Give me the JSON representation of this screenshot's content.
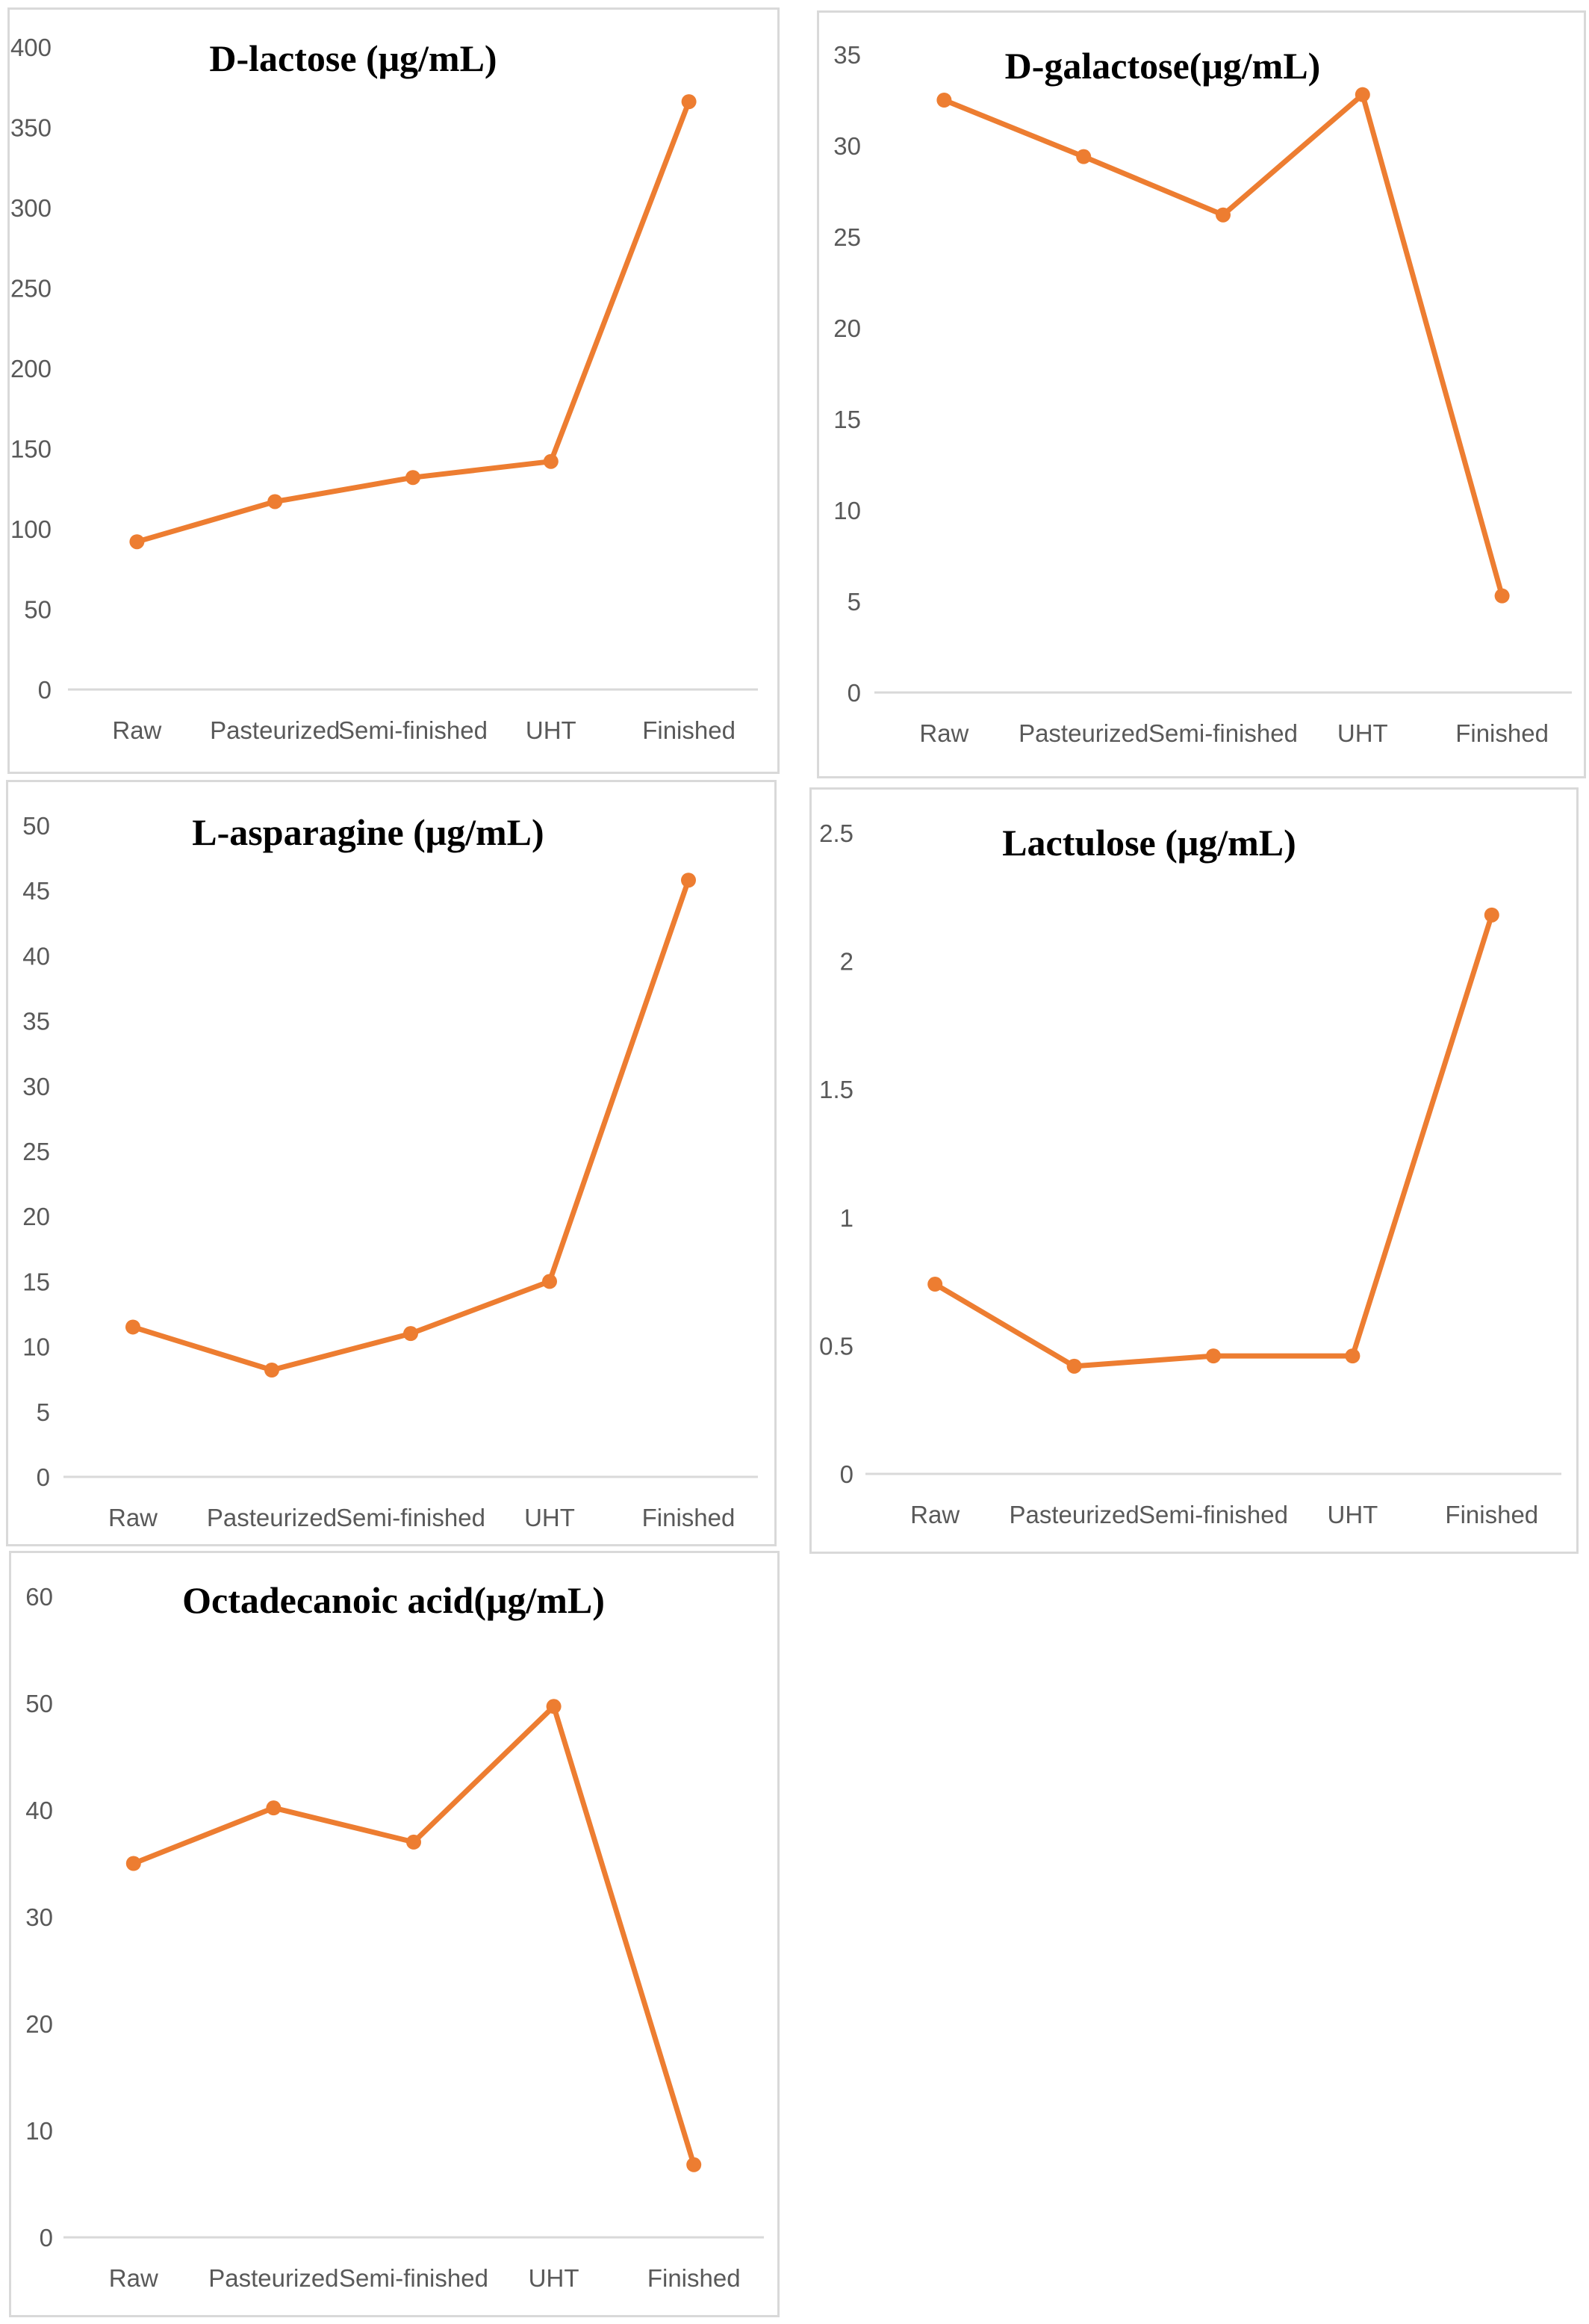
{
  "colors": {
    "series": "#ED7D31",
    "axis": "#D9D9D9",
    "tick_text": "#595959"
  },
  "chart_data": [
    {
      "type": "line",
      "title": "D-lactose (μg/mL)",
      "categories": [
        "Raw",
        "Pasteurized",
        "Semi-finished",
        "UHT",
        "Finished"
      ],
      "values": [
        92,
        117,
        132,
        142,
        366
      ],
      "yticks": [
        "0",
        "50",
        "100",
        "150",
        "200",
        "250",
        "300",
        "350",
        "400"
      ],
      "ylim": [
        0,
        400
      ],
      "grid": false,
      "legend": "none"
    },
    {
      "type": "line",
      "title": "D-galactose(μg/mL)",
      "categories": [
        "Raw",
        "Pasteurized",
        "Semi-finished",
        "UHT",
        "Finished"
      ],
      "values": [
        32.5,
        29.4,
        26.2,
        32.8,
        5.3
      ],
      "yticks": [
        "0",
        "5",
        "10",
        "15",
        "20",
        "25",
        "30",
        "35"
      ],
      "ylim": [
        0,
        35
      ],
      "grid": false,
      "legend": "none"
    },
    {
      "type": "line",
      "title": "L-asparagine (μg/mL)",
      "categories": [
        "Raw",
        "Pasteurized",
        "Semi-finished",
        "UHT",
        "Finished"
      ],
      "values": [
        11.5,
        8.2,
        11.0,
        15.0,
        45.8
      ],
      "yticks": [
        "0",
        "5",
        "10",
        "15",
        "20",
        "25",
        "30",
        "35",
        "40",
        "45",
        "50"
      ],
      "ylim": [
        0,
        50
      ],
      "grid": false,
      "legend": "none"
    },
    {
      "type": "line",
      "title": "Lactulose (μg/mL)",
      "categories": [
        "Raw",
        "Pasteurized",
        "Semi-finished",
        "UHT",
        "Finished"
      ],
      "values": [
        0.74,
        0.42,
        0.46,
        0.46,
        2.18
      ],
      "yticks": [
        "0",
        "0.5",
        "1",
        "1.5",
        "2",
        "2.5"
      ],
      "ylim": [
        0,
        2.5
      ],
      "grid": false,
      "legend": "none"
    },
    {
      "type": "line",
      "title": "Octadecanoic acid(μg/mL)",
      "categories": [
        "Raw",
        "Pasteurized",
        "Semi-finished",
        "UHT",
        "Finished"
      ],
      "values": [
        35.0,
        40.2,
        37.0,
        49.7,
        6.8
      ],
      "yticks": [
        "0",
        "10",
        "20",
        "30",
        "40",
        "50",
        "60"
      ],
      "ylim": [
        0,
        60
      ],
      "grid": false,
      "legend": "none"
    }
  ]
}
